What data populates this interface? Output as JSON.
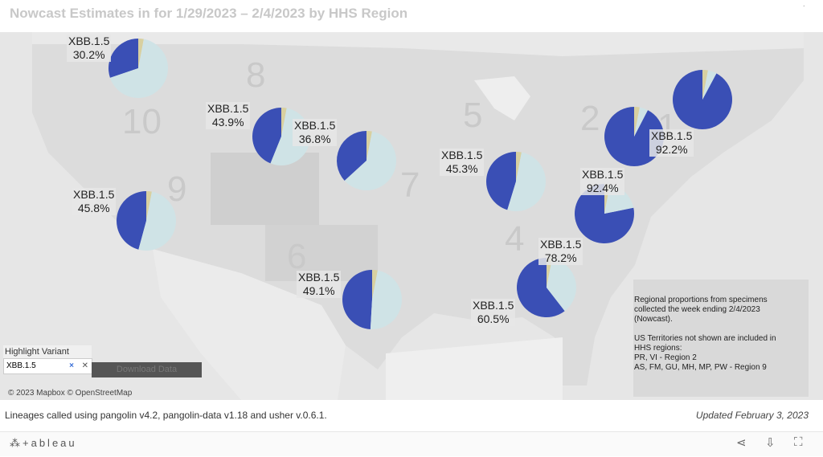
{
  "title": "Nowcast Estimates in for 1/29/2023 – 2/4/2023 by HHS Region",
  "colors": {
    "highlight": "#3a4fb5",
    "other": "#cfe3e6",
    "accent": "#d8d0a0",
    "map_bg": "#e6e6e6",
    "land": "#dcdcdc"
  },
  "region_numbers": [
    "10",
    "8",
    "9",
    "7",
    "6",
    "5",
    "4",
    "2",
    "1"
  ],
  "pies": [
    {
      "region": "10",
      "lines": [
        "XBB.1.5",
        "30.2%"
      ],
      "share": 0.302
    },
    {
      "region": "8",
      "lines": [
        "XBB.1.5",
        "43.9%"
      ],
      "share": 0.439
    },
    {
      "region": "7",
      "lines": [
        "XBB.1.5",
        "36.8%"
      ],
      "share": 0.368
    },
    {
      "region": "9",
      "lines": [
        "XBB.1.5",
        "45.8%"
      ],
      "share": 0.458
    },
    {
      "region": "6",
      "lines": [
        "XBB.1.5",
        "49.1%"
      ],
      "share": 0.491
    },
    {
      "region": "5",
      "lines": [
        "XBB.1.5",
        "45.3%"
      ],
      "share": 0.453
    },
    {
      "region": "4",
      "lines": [
        "XBB.1.5",
        "60.5%"
      ],
      "share": 0.605
    },
    {
      "region": "3",
      "lines": [
        "XBB.1.5",
        "78.2%"
      ],
      "share": 0.782
    },
    {
      "region": "2",
      "lines": [
        "XBB.1.5",
        "92.4%"
      ],
      "share": 0.924
    },
    {
      "region": "1",
      "lines": [
        "XBB.1.5",
        "92.2%"
      ],
      "share": 0.922
    },
    {
      "region": "1b",
      "lines": [],
      "share": 0.95
    }
  ],
  "highlight": {
    "title": "Highlight Variant",
    "value": "XBB.1.5",
    "clear": "×",
    "close": "✕"
  },
  "download_label": "Download Data",
  "attribution": "© 2023 Mapbox  © OpenStreetMap",
  "note_lines": [
    "Regional proportions from specimens",
    "collected the week ending 2/4/2023",
    "(Nowcast).",
    "",
    "US Territories not shown are included in",
    "HHS regions:",
    "PR, VI - Region 2",
    "AS, FM, GU, MH, MP, PW - Region 9"
  ],
  "footer_left": "Lineages called using pangolin v4.2, pangolin-data v1.18 and usher v.0.6.1.",
  "footer_right": "Updated February 3, 2023",
  "toolbar": {
    "logo": "⁂+ableau",
    "logo_text": "+ableau",
    "share_icon": "share-icon",
    "download_icon": "download-icon",
    "fullscreen_icon": "fullscreen-icon"
  },
  "menu": "·"
}
